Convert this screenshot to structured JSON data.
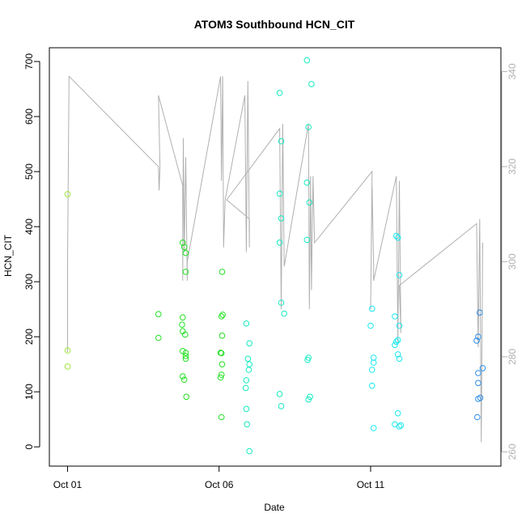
{
  "chart_data": {
    "type": "scatter",
    "title": "ATOM3 Southbound HCN_CIT",
    "xlabel": "Date",
    "ylabel": "HCN_CIT",
    "x_ticks": [
      "Oct 01",
      "Oct 06",
      "Oct 11"
    ],
    "x_tick_values": [
      0,
      5,
      10
    ],
    "xlim": [
      -0.6,
      14.3
    ],
    "ylim": [
      -35,
      725
    ],
    "y_ticks": [
      0,
      100,
      200,
      300,
      400,
      500,
      600,
      700
    ],
    "right_axis": {
      "ylim": [
        257,
        345
      ],
      "ticks": [
        260,
        280,
        300,
        320,
        340
      ],
      "color": "#b0b0b0"
    },
    "point_color_scale": [
      "#9ee63a",
      "#22e022",
      "#14eac0",
      "#19e8ee",
      "#2a8ce8"
    ],
    "points": [
      {
        "x": 0.0,
        "y": 459,
        "c": 0.02
      },
      {
        "x": 0.0,
        "y": 175,
        "c": 0.02
      },
      {
        "x": 0.0,
        "y": 146,
        "c": 0.02
      },
      {
        "x": 3.0,
        "y": 241,
        "c": 0.2
      },
      {
        "x": 3.0,
        "y": 198,
        "c": 0.2
      },
      {
        "x": 3.8,
        "y": 371,
        "c": 0.26
      },
      {
        "x": 3.85,
        "y": 363,
        "c": 0.26
      },
      {
        "x": 3.9,
        "y": 352,
        "c": 0.26
      },
      {
        "x": 3.9,
        "y": 318,
        "c": 0.26
      },
      {
        "x": 3.8,
        "y": 235,
        "c": 0.26
      },
      {
        "x": 3.78,
        "y": 222,
        "c": 0.26
      },
      {
        "x": 3.8,
        "y": 210,
        "c": 0.26
      },
      {
        "x": 3.88,
        "y": 204,
        "c": 0.26
      },
      {
        "x": 3.8,
        "y": 174,
        "c": 0.26
      },
      {
        "x": 3.9,
        "y": 171,
        "c": 0.26
      },
      {
        "x": 3.9,
        "y": 165,
        "c": 0.26
      },
      {
        "x": 3.9,
        "y": 160,
        "c": 0.26
      },
      {
        "x": 3.8,
        "y": 128,
        "c": 0.26
      },
      {
        "x": 3.85,
        "y": 122,
        "c": 0.26
      },
      {
        "x": 3.92,
        "y": 91,
        "c": 0.26
      },
      {
        "x": 5.1,
        "y": 318,
        "c": 0.35
      },
      {
        "x": 5.12,
        "y": 240,
        "c": 0.35
      },
      {
        "x": 5.08,
        "y": 237,
        "c": 0.35
      },
      {
        "x": 5.1,
        "y": 202,
        "c": 0.35
      },
      {
        "x": 5.05,
        "y": 171,
        "c": 0.35
      },
      {
        "x": 5.08,
        "y": 170,
        "c": 0.35
      },
      {
        "x": 5.1,
        "y": 150,
        "c": 0.35
      },
      {
        "x": 5.08,
        "y": 131,
        "c": 0.35
      },
      {
        "x": 5.05,
        "y": 126,
        "c": 0.35
      },
      {
        "x": 5.08,
        "y": 54,
        "c": 0.35
      },
      {
        "x": 5.9,
        "y": 224,
        "c": 0.4
      },
      {
        "x": 6.0,
        "y": 188,
        "c": 0.4
      },
      {
        "x": 5.95,
        "y": 160,
        "c": 0.4
      },
      {
        "x": 6.0,
        "y": 150,
        "c": 0.4
      },
      {
        "x": 5.98,
        "y": 140,
        "c": 0.4
      },
      {
        "x": 5.9,
        "y": 121,
        "c": 0.4
      },
      {
        "x": 5.88,
        "y": 107,
        "c": 0.4
      },
      {
        "x": 5.9,
        "y": 69,
        "c": 0.4
      },
      {
        "x": 5.92,
        "y": 41,
        "c": 0.4
      },
      {
        "x": 6.0,
        "y": -8,
        "c": 0.4
      },
      {
        "x": 7.0,
        "y": 643,
        "c": 0.5
      },
      {
        "x": 7.05,
        "y": 555,
        "c": 0.5
      },
      {
        "x": 7.0,
        "y": 460,
        "c": 0.5
      },
      {
        "x": 7.05,
        "y": 415,
        "c": 0.5
      },
      {
        "x": 7.0,
        "y": 371,
        "c": 0.5
      },
      {
        "x": 7.05,
        "y": 262,
        "c": 0.5
      },
      {
        "x": 7.15,
        "y": 242,
        "c": 0.5
      },
      {
        "x": 7.0,
        "y": 96,
        "c": 0.5
      },
      {
        "x": 7.05,
        "y": 74,
        "c": 0.5
      },
      {
        "x": 7.9,
        "y": 702,
        "c": 0.55
      },
      {
        "x": 8.05,
        "y": 659,
        "c": 0.55
      },
      {
        "x": 7.95,
        "y": 581,
        "c": 0.55
      },
      {
        "x": 7.9,
        "y": 480,
        "c": 0.55
      },
      {
        "x": 7.98,
        "y": 444,
        "c": 0.55
      },
      {
        "x": 7.9,
        "y": 376,
        "c": 0.55
      },
      {
        "x": 7.95,
        "y": 162,
        "c": 0.55
      },
      {
        "x": 7.92,
        "y": 158,
        "c": 0.55
      },
      {
        "x": 8.0,
        "y": 91,
        "c": 0.55
      },
      {
        "x": 7.95,
        "y": 86,
        "c": 0.55
      },
      {
        "x": 10.05,
        "y": 251,
        "c": 0.7
      },
      {
        "x": 10.0,
        "y": 220,
        "c": 0.7
      },
      {
        "x": 10.1,
        "y": 162,
        "c": 0.7
      },
      {
        "x": 10.1,
        "y": 153,
        "c": 0.7
      },
      {
        "x": 10.05,
        "y": 140,
        "c": 0.7
      },
      {
        "x": 10.05,
        "y": 111,
        "c": 0.7
      },
      {
        "x": 10.1,
        "y": 34,
        "c": 0.7
      },
      {
        "x": 10.85,
        "y": 383,
        "c": 0.75
      },
      {
        "x": 10.9,
        "y": 380,
        "c": 0.75
      },
      {
        "x": 10.95,
        "y": 312,
        "c": 0.75
      },
      {
        "x": 10.8,
        "y": 237,
        "c": 0.75
      },
      {
        "x": 10.95,
        "y": 220,
        "c": 0.75
      },
      {
        "x": 10.9,
        "y": 194,
        "c": 0.75
      },
      {
        "x": 10.85,
        "y": 191,
        "c": 0.75
      },
      {
        "x": 10.8,
        "y": 185,
        "c": 0.75
      },
      {
        "x": 10.9,
        "y": 168,
        "c": 0.75
      },
      {
        "x": 10.95,
        "y": 160,
        "c": 0.75
      },
      {
        "x": 10.9,
        "y": 61,
        "c": 0.75
      },
      {
        "x": 10.8,
        "y": 41,
        "c": 0.75
      },
      {
        "x": 10.95,
        "y": 37,
        "c": 0.75
      },
      {
        "x": 11.0,
        "y": 39,
        "c": 0.75
      },
      {
        "x": 13.6,
        "y": 244,
        "c": 0.95
      },
      {
        "x": 13.55,
        "y": 200,
        "c": 0.95
      },
      {
        "x": 13.5,
        "y": 193,
        "c": 0.95
      },
      {
        "x": 13.7,
        "y": 143,
        "c": 0.95
      },
      {
        "x": 13.55,
        "y": 134,
        "c": 0.95
      },
      {
        "x": 13.55,
        "y": 116,
        "c": 0.95
      },
      {
        "x": 13.62,
        "y": 89,
        "c": 0.95
      },
      {
        "x": 13.55,
        "y": 87,
        "c": 0.95
      },
      {
        "x": 13.52,
        "y": 54,
        "c": 0.95
      }
    ],
    "gray_line": [
      [
        0.0,
        281
      ],
      [
        0.0,
        300
      ],
      [
        0.05,
        339
      ],
      [
        3.0,
        320
      ],
      [
        3.02,
        315
      ],
      [
        3.05,
        320
      ],
      [
        3.0,
        335
      ],
      [
        3.8,
        316
      ],
      [
        3.8,
        296
      ],
      [
        3.82,
        326
      ],
      [
        3.85,
        302
      ],
      [
        3.9,
        322
      ],
      [
        3.95,
        296
      ],
      [
        3.95,
        300
      ],
      [
        5.05,
        339
      ],
      [
        5.08,
        317
      ],
      [
        5.12,
        339
      ],
      [
        5.15,
        303
      ],
      [
        5.2,
        313
      ],
      [
        5.85,
        335
      ],
      [
        5.9,
        302
      ],
      [
        5.95,
        338
      ],
      [
        6.0,
        303
      ],
      [
        6.0,
        309
      ],
      [
        5.25,
        313
      ],
      [
        7.0,
        328
      ],
      [
        7.05,
        290
      ],
      [
        7.1,
        329
      ],
      [
        7.15,
        299
      ],
      [
        7.95,
        329
      ],
      [
        7.98,
        290
      ],
      [
        8.02,
        318
      ],
      [
        8.05,
        294
      ],
      [
        8.1,
        318
      ],
      [
        8.15,
        304
      ],
      [
        10.05,
        319
      ],
      [
        10.0,
        290
      ],
      [
        10.05,
        316
      ],
      [
        10.1,
        299
      ],
      [
        10.1,
        296
      ],
      [
        10.85,
        318
      ],
      [
        10.9,
        283
      ],
      [
        10.95,
        317
      ],
      [
        11.0,
        285
      ],
      [
        10.95,
        295
      ],
      [
        13.5,
        308
      ],
      [
        13.55,
        282
      ],
      [
        13.6,
        309
      ],
      [
        13.65,
        262
      ],
      [
        13.7,
        304
      ]
    ]
  }
}
